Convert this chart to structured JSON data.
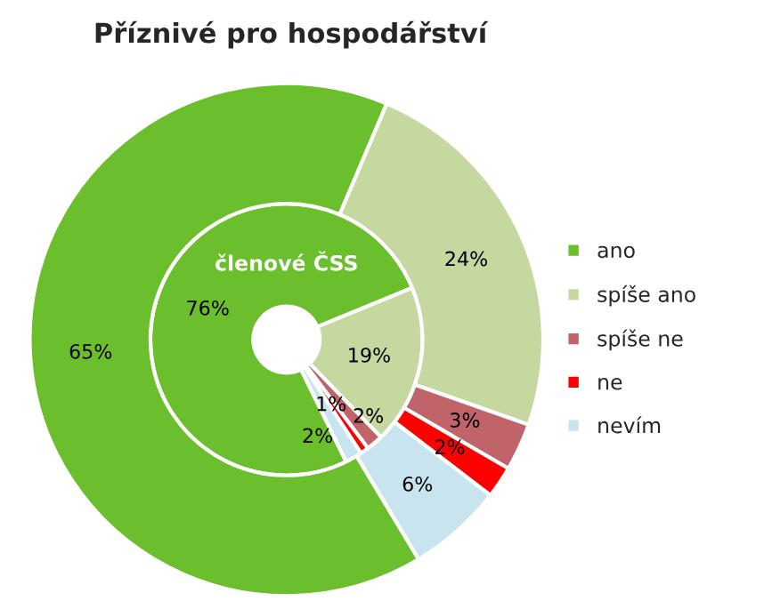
{
  "chart_data": {
    "type": "donut",
    "title": "Příznivé pro hospodářství",
    "categories": [
      "ano",
      "spíše ano",
      "spíše ne",
      "ne",
      "nevím"
    ],
    "colors": [
      "#6cbf2c",
      "#c4d8a0",
      "#c0646a",
      "#ff0000",
      "#c8e4ee"
    ],
    "series": [
      {
        "name": "členové ČSS",
        "values": [
          76,
          19,
          2,
          1,
          2
        ],
        "value_labels": [
          "76%",
          "19%",
          "2%",
          "1%",
          "2%"
        ]
      },
      {
        "values": [
          65,
          24,
          3,
          2,
          6
        ],
        "value_labels": [
          "65%",
          "24%",
          "3%",
          "2%",
          "6%"
        ]
      }
    ],
    "legend": "right"
  }
}
